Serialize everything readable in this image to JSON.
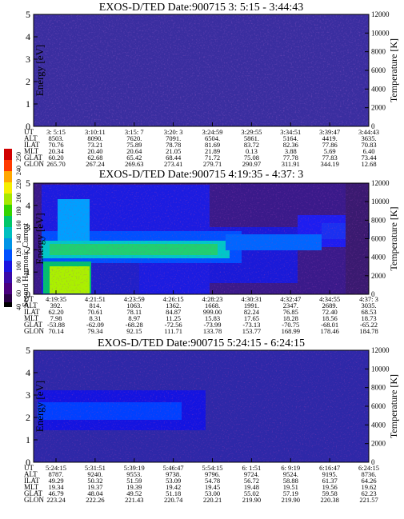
{
  "colorbar": {
    "title": "Second Harmonic Current",
    "ticks": [
      "40",
      "60",
      "80",
      "100",
      "120",
      "140",
      "160",
      "180",
      "200",
      "220",
      "240",
      "250"
    ]
  },
  "axis_labels": {
    "energy": "Energy [eV]",
    "temperature": "Temperature [K]"
  },
  "panels": [
    {
      "title": "EXOS-D/TED   Date:900715   3: 5:15 - 3:44:43",
      "chart_data": {
        "type": "heatmap",
        "y_left": {
          "label": "Energy [eV]",
          "ticks": [
            "0",
            "1",
            "2",
            "3",
            "4",
            "5"
          ],
          "ylim": [
            0,
            5
          ]
        },
        "y_right": {
          "label": "Temperature [K]",
          "ticks": [
            "0",
            "2000",
            "4000",
            "6000",
            "8000",
            "10000",
            "12000"
          ],
          "ylim": [
            0,
            12000
          ]
        },
        "rows": [
          {
            "label": "UT",
            "values": [
              "3: 5:15",
              "3:10:11",
              "3:15: 7",
              "3:20: 3",
              "3:24:59",
              "3:29:55",
              "3:34:51",
              "3:39:47",
              "3:44:43"
            ]
          },
          {
            "label": "ALT",
            "values": [
              "8503.",
              "8090.",
              "7620.",
              "7091.",
              "6504.",
              "5861.",
              "5164.",
              "4419.",
              "3635."
            ]
          },
          {
            "label": "ILAT",
            "values": [
              "70.76",
              "73.21",
              "75.89",
              "78.78",
              "81.69",
              "83.72",
              "82.36",
              "77.86",
              "70.83"
            ]
          },
          {
            "label": "MLT",
            "values": [
              "20.34",
              "20.40",
              "20.64",
              "21.05",
              "21.89",
              "0.13",
              "3.88",
              "5.69",
              "6.40"
            ]
          },
          {
            "label": "GLAT",
            "values": [
              "60.20",
              "62.68",
              "65.42",
              "68.44",
              "71.72",
              "75.08",
              "77.78",
              "77.83",
              "73.44"
            ]
          },
          {
            "label": "GLON",
            "values": [
              "265.70",
              "267.24",
              "269.63",
              "273.41",
              "279.71",
              "290.97",
              "311.91",
              "344.19",
              "12.68"
            ]
          }
        ]
      }
    },
    {
      "title": "EXOS-D/TED   Date:900715   4:19:35 - 4:37: 3",
      "chart_data": {
        "type": "heatmap",
        "y_left": {
          "label": "Energy [eV]",
          "ticks": [
            "0",
            "1",
            "2",
            "3",
            "4",
            "5"
          ],
          "ylim": [
            0,
            5
          ]
        },
        "y_right": {
          "label": "Temperature [K]",
          "ticks": [
            "0",
            "2000",
            "4000",
            "6000",
            "8000",
            "10000",
            "12000"
          ],
          "ylim": [
            0,
            12000
          ]
        },
        "rows": [
          {
            "label": "UT",
            "values": [
              "4:19:35",
              "4:21:51",
              "4:23:59",
              "4:26:15",
              "4:28:23",
              "4:30:31",
              "4:32:47",
              "4:34:55",
              "4:37: 3"
            ]
          },
          {
            "label": "ALT",
            "values": [
              "392.",
              "814.",
              "1063.",
              "1362.",
              "1668.",
              "1991.",
              "2347.",
              "2689.",
              "3035."
            ]
          },
          {
            "label": "ILAT",
            "values": [
              "62.20",
              "70.61",
              "78.11",
              "84.87",
              "999.00",
              "82.24",
              "76.85",
              "72.40",
              "68.53"
            ]
          },
          {
            "label": "MLT",
            "values": [
              "7.98",
              "8.31",
              "8.97",
              "11.25",
              "15.83",
              "17.65",
              "18.28",
              "18.56",
              "18.73"
            ]
          },
          {
            "label": "GLAT",
            "values": [
              "-53.88",
              "-62.09",
              "-68.28",
              "-72.56",
              "-73.99",
              "-73.13",
              "-70.75",
              "-68.01",
              "-65.22"
            ]
          },
          {
            "label": "GLON",
            "values": [
              "70.14",
              "79.34",
              "92.15",
              "111.71",
              "133.78",
              "153.77",
              "168.99",
              "178.46",
              "184.78"
            ]
          }
        ]
      }
    },
    {
      "title": "EXOS-D/TED   Date:900715   5:24:15 - 6:24:15",
      "chart_data": {
        "type": "heatmap",
        "y_left": {
          "label": "Energy [eV]",
          "ticks": [
            "0",
            "1",
            "2",
            "3",
            "4",
            "5"
          ],
          "ylim": [
            0,
            5
          ]
        },
        "y_right": {
          "label": "Temperature [K]",
          "ticks": [
            "0",
            "2000",
            "4000",
            "6000",
            "8000",
            "10000",
            "12000"
          ],
          "ylim": [
            0,
            12000
          ]
        },
        "rows": [
          {
            "label": "UT",
            "values": [
              "5:24:15",
              "5:31:51",
              "5:39:19",
              "5:46:47",
              "5:54:15",
              "6: 1:51",
              "6: 9:19",
              "6:16:47",
              "6:24:15"
            ]
          },
          {
            "label": "ALT",
            "values": [
              "8787.",
              "9240.",
              "9553.",
              "9738.",
              "9796.",
              "9724.",
              "9524.",
              "9195.",
              "8736."
            ]
          },
          {
            "label": "ILAT",
            "values": [
              "49.29",
              "50.32",
              "51.59",
              "53.09",
              "54.78",
              "56.72",
              "58.88",
              "61.37",
              "64.26"
            ]
          },
          {
            "label": "MLT",
            "values": [
              "19.34",
              "19.37",
              "19.39",
              "19.42",
              "19.45",
              "19.48",
              "19.51",
              "19.56",
              "19.62"
            ]
          },
          {
            "label": "GLAT",
            "values": [
              "46.79",
              "48.04",
              "49.52",
              "51.18",
              "53.00",
              "55.02",
              "57.19",
              "59.58",
              "62.23"
            ]
          },
          {
            "label": "GLON",
            "values": [
              "223.24",
              "222.26",
              "221.43",
              "220.74",
              "220.21",
              "219.90",
              "219.90",
              "220.38",
              "221.57"
            ]
          }
        ]
      }
    }
  ]
}
